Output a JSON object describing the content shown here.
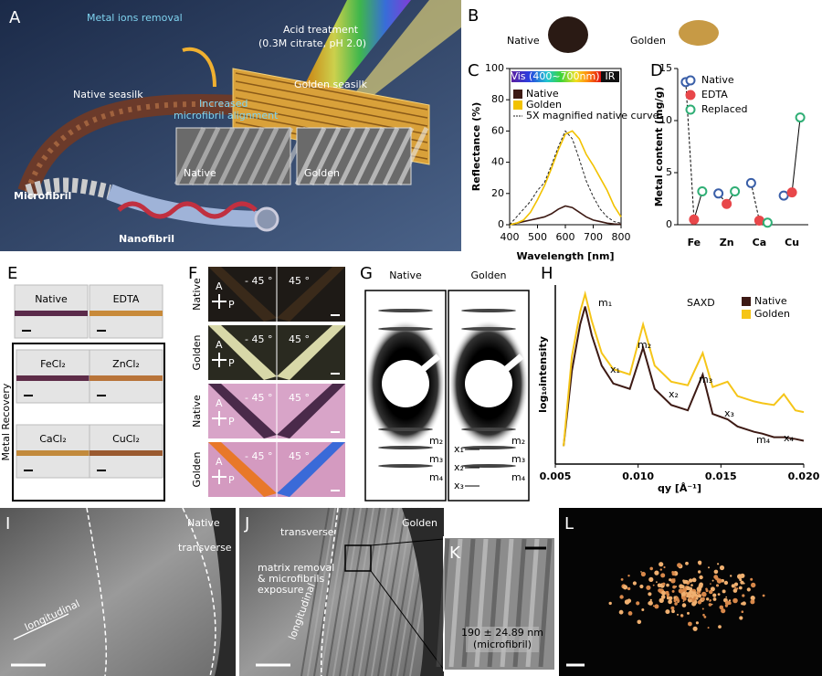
{
  "figure": {
    "a": {
      "label": "A",
      "metal_ions_removal": "Metal ions removal",
      "acid_treatment": "Acid treatment",
      "acid_conditions": "(0.3M citrate, pH 2.0)",
      "native_seasilk": "Native seasilk",
      "golden_seasilk": "Golden seasilk",
      "alignment": [
        "Increased",
        "microfibril alignment"
      ],
      "inset_native": "Native",
      "inset_golden": "Golden",
      "microfibril": "Microfibril",
      "nanofibril": "Nanofibril"
    },
    "b": {
      "label": "B",
      "native": "Native",
      "golden": "Golden"
    },
    "e": {
      "label": "E",
      "native": "Native",
      "edta": "EDTA",
      "metal_recovery": "Metal Recovery",
      "samples": [
        "FeCl₂",
        "ZnCl₂",
        "CaCl₂",
        "CuCl₂"
      ]
    },
    "f": {
      "label": "F",
      "rows": [
        "Native",
        "Golden",
        "Native",
        "Golden"
      ],
      "angles": [
        "- 45 °",
        "45 °"
      ],
      "analyzer": "A",
      "polarizer": "P"
    },
    "g": {
      "label": "G",
      "native": "Native",
      "golden": "Golden",
      "native_peaks": [
        "m₂",
        "m₃",
        "m₄"
      ],
      "golden_peaks": [
        "x₁",
        "m₂",
        "x₂",
        "m₃",
        "x₃",
        "m₄"
      ]
    },
    "i": {
      "label": "I",
      "sample": "Native",
      "transverse": "transverse",
      "longitudinal": "longitudinal"
    },
    "j": {
      "label": "J",
      "sample": "Golden",
      "transverse": "transverse",
      "note": [
        "matrix removal",
        "& microfibrils",
        "exposure"
      ],
      "longitudinal": "longitudinal"
    },
    "k": {
      "label": "K",
      "size": "190 ± 24.89 nm",
      "note": "(microfibril)"
    },
    "l": {
      "label": "L"
    }
  },
  "chart_data": [
    {
      "type": "line",
      "panel": "C",
      "xlabel": "Wavelength [nm]",
      "ylabel": "Reflectance (%)",
      "colorbar": {
        "visible": "Vis (400~700nm)",
        "infrared": "IR"
      },
      "x": [
        400,
        425,
        450,
        475,
        500,
        525,
        550,
        575,
        600,
        625,
        650,
        675,
        700,
        725,
        750,
        775,
        800
      ],
      "series": [
        {
          "name": "Native",
          "color": "#3d1a14",
          "values": [
            0,
            1,
            2,
            3,
            4,
            5,
            7,
            10,
            12,
            11,
            8,
            5,
            3,
            2,
            1,
            0.5,
            0.3
          ]
        },
        {
          "name": "Golden",
          "color": "#f2c200",
          "values": [
            0,
            1,
            3,
            8,
            16,
            25,
            36,
            48,
            58,
            60,
            55,
            45,
            38,
            30,
            22,
            12,
            5
          ]
        },
        {
          "name": "5X magnified native curve",
          "color": "#222222",
          "dashed": true,
          "values": [
            0,
            5,
            10,
            15,
            22,
            27,
            38,
            50,
            60,
            55,
            42,
            28,
            18,
            10,
            5,
            2,
            1
          ]
        }
      ],
      "xlim": [
        400,
        800
      ],
      "xticks": [
        400,
        500,
        600,
        700,
        800
      ],
      "ylim": [
        0,
        100
      ],
      "yticks": [
        0,
        20,
        40,
        60,
        80,
        100
      ]
    },
    {
      "type": "scatter",
      "panel": "D",
      "ylabel": "Metal content (mg/g)",
      "categories": [
        "Fe",
        "Zn",
        "Ca",
        "Cu"
      ],
      "series": [
        {
          "name": "Native",
          "color": "#3a5fa8",
          "values": [
            13.7,
            3.0,
            4.0,
            2.8
          ]
        },
        {
          "name": "EDTA",
          "color": "#e8474a",
          "values": [
            0.5,
            2.0,
            0.4,
            3.1
          ]
        },
        {
          "name": "Replaced",
          "color": "#2fae75",
          "values": [
            3.2,
            3.2,
            0.2,
            10.3
          ]
        }
      ],
      "ylim": [
        0,
        15
      ],
      "yticks": [
        0,
        5,
        10,
        15
      ]
    },
    {
      "type": "line",
      "panel": "H",
      "title": "SAXD",
      "xlabel": "qy [Å⁻¹]",
      "ylabel": "log₁₀intensity",
      "x": [
        0.0055,
        0.006,
        0.0065,
        0.0068,
        0.0072,
        0.0078,
        0.0085,
        0.0095,
        0.0103,
        0.011,
        0.012,
        0.013,
        0.0139,
        0.0145,
        0.0154,
        0.016,
        0.017,
        0.0175,
        0.0182,
        0.0188,
        0.0195,
        0.02
      ],
      "series": [
        {
          "name": "Native",
          "color": "#3d1a14",
          "values": [
            0.1,
            0.52,
            0.78,
            0.88,
            0.72,
            0.55,
            0.45,
            0.42,
            0.65,
            0.42,
            0.33,
            0.3,
            0.5,
            0.28,
            0.25,
            0.21,
            0.18,
            0.17,
            0.15,
            0.15,
            0.14,
            0.13
          ]
        },
        {
          "name": "Golden",
          "color": "#f5c518",
          "values": [
            0.1,
            0.6,
            0.85,
            0.95,
            0.8,
            0.62,
            0.53,
            0.5,
            0.78,
            0.55,
            0.46,
            0.44,
            0.62,
            0.43,
            0.46,
            0.38,
            0.35,
            0.34,
            0.33,
            0.39,
            0.3,
            0.29
          ]
        }
      ],
      "annotations": [
        "m₁",
        "m₂",
        "x₁",
        "m₃",
        "x₂",
        "x₃",
        "m₄",
        "x₄"
      ],
      "xlim": [
        0.005,
        0.02
      ],
      "xticks": [
        {
          "value": 0.005,
          "label": "0.005"
        },
        {
          "value": 0.01,
          "label": "0.010"
        },
        {
          "value": 0.015,
          "label": "0.015"
        },
        {
          "value": 0.02,
          "label": "0.020"
        }
      ],
      "ylim": [
        0,
        1
      ]
    }
  ]
}
